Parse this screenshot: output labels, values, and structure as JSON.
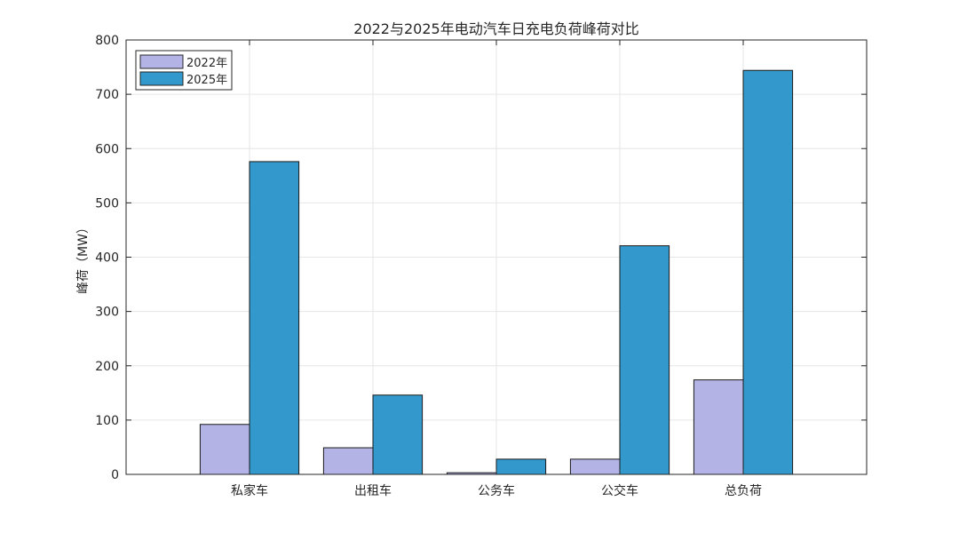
{
  "chart_data": {
    "type": "bar",
    "title": "2022与2025年电动汽车日充电负荷峰荷对比",
    "xlabel": "",
    "ylabel": "峰荷（MW）",
    "categories": [
      "私家车",
      "出租车",
      "公务车",
      "公交车",
      "总负荷"
    ],
    "series": [
      {
        "name": "2022年",
        "values": [
          92,
          49,
          3,
          28,
          174
        ],
        "color": "#b3b3e6"
      },
      {
        "name": "2025年",
        "values": [
          576,
          146,
          28,
          421,
          744
        ],
        "color": "#3399cc"
      }
    ],
    "ylim": [
      0,
      800
    ],
    "yticks": [
      "0",
      "100",
      "200",
      "300",
      "400",
      "500",
      "600",
      "700",
      "800"
    ],
    "grid": true,
    "legend_position": "top-left"
  }
}
